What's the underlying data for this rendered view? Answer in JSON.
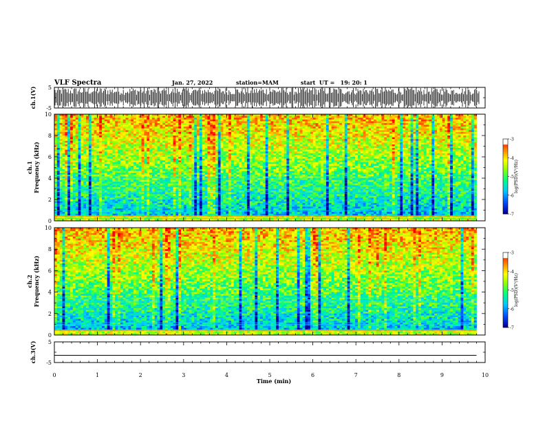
{
  "header": {
    "title": "VLF Spectra",
    "date": "Jan. 27, 2022",
    "station": "station=MAM",
    "start": "start  UT =   19: 20: 1"
  },
  "chart_data": [
    {
      "type": "line",
      "name": "ch1-waveform",
      "ylabel": "ch.1(V)",
      "ylim": [
        -5,
        5
      ],
      "ytick_labels": [
        "5",
        "-5"
      ],
      "xlim": [
        0,
        10
      ]
    },
    {
      "type": "heatmap",
      "name": "ch1-spectrogram",
      "ylabel": "ch.1\nFrequency (kHz)",
      "ylim": [
        0,
        10
      ],
      "ytick_labels": [
        "0",
        "2",
        "4",
        "6",
        "8",
        "10"
      ],
      "xlim": [
        0,
        9.8
      ],
      "colorbar": {
        "label": "log(PSD)(V²/Hz)",
        "range": [
          -7,
          -3
        ],
        "tick_labels": [
          "-3",
          "-4",
          "-5",
          "-6",
          "-7"
        ],
        "colors": [
          "#0000a0",
          "#0050ff",
          "#00d0ff",
          "#00ff80",
          "#a0ff00",
          "#ffff00",
          "#ff9000",
          "#ff0000",
          "#ffffff"
        ]
      }
    },
    {
      "type": "heatmap",
      "name": "ch2-spectrogram",
      "ylabel": "ch.2\nFrequency (kHz)",
      "ylim": [
        0,
        10
      ],
      "ytick_labels": [
        "0",
        "2",
        "4",
        "6",
        "8",
        "10"
      ],
      "xlim": [
        0,
        9.8
      ],
      "colorbar": {
        "label": "log(PSD)(V²/Hz)",
        "range": [
          -7,
          -3
        ],
        "tick_labels": [
          "-3",
          "-4",
          "-5",
          "-6",
          "-7"
        ],
        "colors": [
          "#0000a0",
          "#0050ff",
          "#00d0ff",
          "#00ff80",
          "#a0ff00",
          "#ffff00",
          "#ff9000",
          "#ff0000",
          "#ffffff"
        ]
      }
    },
    {
      "type": "line",
      "name": "ch3-waveform",
      "ylabel": "ch.3(V)",
      "ylim": [
        -5,
        5
      ],
      "ytick_labels": [
        "5",
        "-5"
      ],
      "xlim": [
        0,
        10
      ],
      "series": [
        {
          "y": -1.5
        }
      ]
    }
  ],
  "xaxis": {
    "label": "Time (min)",
    "range": [
      0,
      10
    ],
    "tick_labels": [
      "0",
      "1",
      "2",
      "3",
      "4",
      "5",
      "6",
      "7",
      "8",
      "9",
      "10"
    ]
  }
}
